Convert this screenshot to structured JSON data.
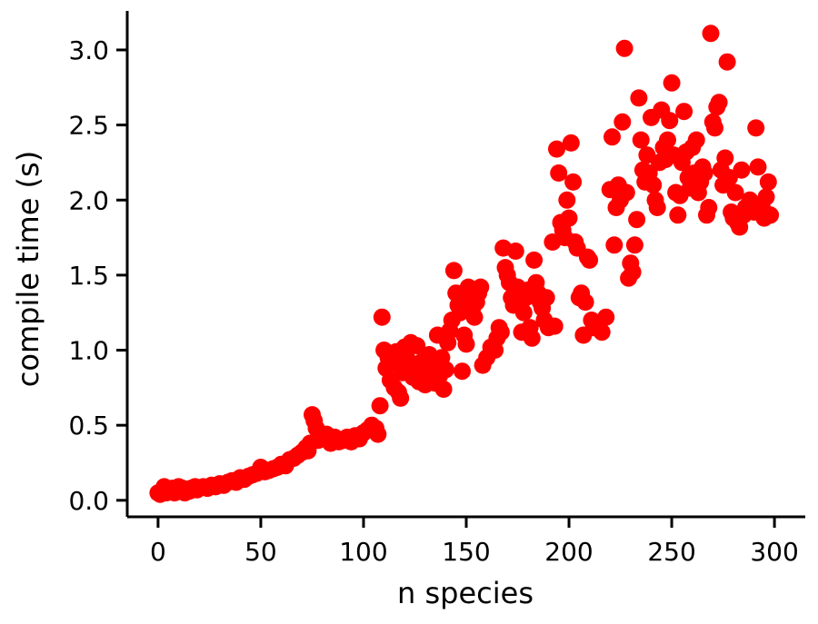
{
  "chart_data": {
    "type": "scatter",
    "title": "",
    "xlabel": "n species",
    "ylabel": "compile time (s)",
    "xlim": [
      -15,
      315
    ],
    "ylim": [
      -0.11,
      3.26
    ],
    "xticks": [
      0,
      50,
      100,
      150,
      200,
      250,
      300
    ],
    "xtick_labels": [
      "0",
      "50",
      "100",
      "150",
      "200",
      "250",
      "300"
    ],
    "yticks": [
      0.0,
      0.5,
      1.0,
      1.5,
      2.0,
      2.5,
      3.0
    ],
    "ytick_labels": [
      "0.0",
      "0.5",
      "1.0",
      "1.5",
      "2.0",
      "2.5",
      "3.0"
    ],
    "grid": false,
    "marker_color": "#ff0000",
    "points": [
      [
        0,
        0.05
      ],
      [
        1,
        0.04
      ],
      [
        2,
        0.06
      ],
      [
        3,
        0.09
      ],
      [
        4,
        0.05
      ],
      [
        5,
        0.07
      ],
      [
        6,
        0.06
      ],
      [
        7,
        0.08
      ],
      [
        8,
        0.05
      ],
      [
        9,
        0.07
      ],
      [
        10,
        0.09
      ],
      [
        11,
        0.06
      ],
      [
        12,
        0.08
      ],
      [
        13,
        0.05
      ],
      [
        14,
        0.07
      ],
      [
        15,
        0.06
      ],
      [
        16,
        0.08
      ],
      [
        17,
        0.07
      ],
      [
        18,
        0.09
      ],
      [
        19,
        0.07
      ],
      [
        20,
        0.08
      ],
      [
        22,
        0.09
      ],
      [
        24,
        0.08
      ],
      [
        26,
        0.1
      ],
      [
        28,
        0.09
      ],
      [
        30,
        0.11
      ],
      [
        32,
        0.1
      ],
      [
        34,
        0.12
      ],
      [
        36,
        0.13
      ],
      [
        38,
        0.12
      ],
      [
        40,
        0.15
      ],
      [
        42,
        0.14
      ],
      [
        44,
        0.16
      ],
      [
        46,
        0.17
      ],
      [
        48,
        0.18
      ],
      [
        50,
        0.22
      ],
      [
        52,
        0.19
      ],
      [
        54,
        0.2
      ],
      [
        56,
        0.21
      ],
      [
        58,
        0.22
      ],
      [
        60,
        0.24
      ],
      [
        62,
        0.23
      ],
      [
        64,
        0.27
      ],
      [
        66,
        0.28
      ],
      [
        68,
        0.3
      ],
      [
        70,
        0.32
      ],
      [
        72,
        0.35
      ],
      [
        73,
        0.33
      ],
      [
        74,
        0.38
      ],
      [
        75,
        0.57
      ],
      [
        76,
        0.53
      ],
      [
        77,
        0.48
      ],
      [
        78,
        0.4
      ],
      [
        80,
        0.43
      ],
      [
        82,
        0.44
      ],
      [
        84,
        0.38
      ],
      [
        86,
        0.42
      ],
      [
        88,
        0.39
      ],
      [
        90,
        0.4
      ],
      [
        92,
        0.42
      ],
      [
        94,
        0.39
      ],
      [
        96,
        0.43
      ],
      [
        98,
        0.41
      ],
      [
        100,
        0.45
      ],
      [
        102,
        0.47
      ],
      [
        104,
        0.5
      ],
      [
        106,
        0.48
      ],
      [
        107,
        0.44
      ],
      [
        108,
        0.63
      ],
      [
        109,
        1.22
      ],
      [
        110,
        1.0
      ],
      [
        111,
        0.88
      ],
      [
        112,
        0.95
      ],
      [
        113,
        0.8
      ],
      [
        114,
        0.91
      ],
      [
        115,
        0.75
      ],
      [
        116,
        0.99
      ],
      [
        117,
        0.72
      ],
      [
        118,
        0.68
      ],
      [
        119,
        0.85
      ],
      [
        120,
        1.02
      ],
      [
        121,
        0.95
      ],
      [
        122,
        0.88
      ],
      [
        123,
        1.05
      ],
      [
        124,
        0.82
      ],
      [
        125,
        0.9
      ],
      [
        126,
        1.03
      ],
      [
        127,
        0.79
      ],
      [
        128,
        0.92
      ],
      [
        129,
        0.85
      ],
      [
        130,
        0.77
      ],
      [
        131,
        0.88
      ],
      [
        132,
        0.97
      ],
      [
        133,
        0.82
      ],
      [
        134,
        0.91
      ],
      [
        135,
        0.78
      ],
      [
        136,
        1.1
      ],
      [
        137,
        0.83
      ],
      [
        138,
        0.95
      ],
      [
        139,
        0.74
      ],
      [
        140,
        0.87
      ],
      [
        141,
        1.05
      ],
      [
        142,
        1.13
      ],
      [
        143,
        1.2
      ],
      [
        144,
        1.53
      ],
      [
        145,
        1.38
      ],
      [
        146,
        1.3
      ],
      [
        147,
        1.25
      ],
      [
        148,
        0.86
      ],
      [
        149,
        1.1
      ],
      [
        150,
        1.04
      ],
      [
        151,
        1.42
      ],
      [
        152,
        1.35
      ],
      [
        153,
        1.28
      ],
      [
        154,
        1.22
      ],
      [
        155,
        1.32
      ],
      [
        156,
        1.38
      ],
      [
        157,
        1.42
      ],
      [
        158,
        0.9
      ],
      [
        160,
        0.95
      ],
      [
        162,
        1.02
      ],
      [
        164,
        1.0
      ],
      [
        165,
        1.08
      ],
      [
        166,
        1.15
      ],
      [
        167,
        1.12
      ],
      [
        168,
        1.68
      ],
      [
        169,
        1.55
      ],
      [
        170,
        1.5
      ],
      [
        171,
        1.45
      ],
      [
        172,
        1.35
      ],
      [
        173,
        1.3
      ],
      [
        174,
        1.66
      ],
      [
        175,
        1.42
      ],
      [
        176,
        1.38
      ],
      [
        177,
        1.12
      ],
      [
        178,
        1.25
      ],
      [
        179,
        1.35
      ],
      [
        180,
        1.4
      ],
      [
        181,
        1.15
      ],
      [
        182,
        1.08
      ],
      [
        183,
        1.6
      ],
      [
        184,
        1.45
      ],
      [
        185,
        1.38
      ],
      [
        186,
        1.32
      ],
      [
        187,
        1.28
      ],
      [
        188,
        1.2
      ],
      [
        189,
        1.35
      ],
      [
        190,
        1.15
      ],
      [
        192,
        1.72
      ],
      [
        193,
        1.16
      ],
      [
        194,
        2.34
      ],
      [
        195,
        2.18
      ],
      [
        196,
        1.85
      ],
      [
        197,
        1.8
      ],
      [
        198,
        1.75
      ],
      [
        199,
        2.0
      ],
      [
        200,
        1.88
      ],
      [
        201,
        2.38
      ],
      [
        202,
        2.12
      ],
      [
        203,
        1.72
      ],
      [
        204,
        1.68
      ],
      [
        205,
        1.35
      ],
      [
        206,
        1.38
      ],
      [
        207,
        1.1
      ],
      [
        208,
        1.32
      ],
      [
        209,
        1.62
      ],
      [
        210,
        1.6
      ],
      [
        211,
        1.2
      ],
      [
        212,
        1.15
      ],
      [
        214,
        1.18
      ],
      [
        216,
        1.12
      ],
      [
        218,
        1.22
      ],
      [
        220,
        2.07
      ],
      [
        221,
        2.42
      ],
      [
        222,
        1.7
      ],
      [
        223,
        1.95
      ],
      [
        224,
        2.1
      ],
      [
        225,
        2.0
      ],
      [
        226,
        2.52
      ],
      [
        227,
        3.01
      ],
      [
        228,
        2.05
      ],
      [
        229,
        1.48
      ],
      [
        230,
        1.58
      ],
      [
        231,
        1.52
      ],
      [
        232,
        1.7
      ],
      [
        233,
        1.87
      ],
      [
        234,
        2.68
      ],
      [
        235,
        2.4
      ],
      [
        236,
        2.2
      ],
      [
        237,
        2.12
      ],
      [
        238,
        2.3
      ],
      [
        239,
        2.18
      ],
      [
        240,
        2.55
      ],
      [
        241,
        2.1
      ],
      [
        242,
        2.0
      ],
      [
        243,
        1.95
      ],
      [
        244,
        2.25
      ],
      [
        245,
        2.6
      ],
      [
        246,
        2.35
      ],
      [
        247,
        2.27
      ],
      [
        248,
        2.4
      ],
      [
        249,
        2.53
      ],
      [
        250,
        2.78
      ],
      [
        251,
        2.3
      ],
      [
        252,
        2.05
      ],
      [
        253,
        1.9
      ],
      [
        254,
        2.03
      ],
      [
        255,
        2.25
      ],
      [
        256,
        2.59
      ],
      [
        257,
        2.32
      ],
      [
        258,
        2.15
      ],
      [
        259,
        2.08
      ],
      [
        260,
        2.35
      ],
      [
        261,
        2.18
      ],
      [
        262,
        2.4
      ],
      [
        263,
        2.05
      ],
      [
        264,
        2.12
      ],
      [
        265,
        2.22
      ],
      [
        266,
        2.18
      ],
      [
        267,
        1.9
      ],
      [
        268,
        1.95
      ],
      [
        269,
        3.11
      ],
      [
        270,
        2.52
      ],
      [
        271,
        2.48
      ],
      [
        272,
        2.62
      ],
      [
        273,
        2.65
      ],
      [
        274,
        2.2
      ],
      [
        275,
        2.1
      ],
      [
        276,
        2.28
      ],
      [
        277,
        2.92
      ],
      [
        278,
        2.15
      ],
      [
        279,
        1.92
      ],
      [
        280,
        1.88
      ],
      [
        281,
        2.05
      ],
      [
        282,
        1.85
      ],
      [
        283,
        1.82
      ],
      [
        284,
        2.2
      ],
      [
        285,
        1.9
      ],
      [
        286,
        1.95
      ],
      [
        288,
        2.0
      ],
      [
        290,
        1.92
      ],
      [
        291,
        2.48
      ],
      [
        292,
        2.22
      ],
      [
        294,
        1.95
      ],
      [
        295,
        1.88
      ],
      [
        296,
        2.02
      ],
      [
        297,
        2.12
      ],
      [
        298,
        1.9
      ]
    ]
  }
}
